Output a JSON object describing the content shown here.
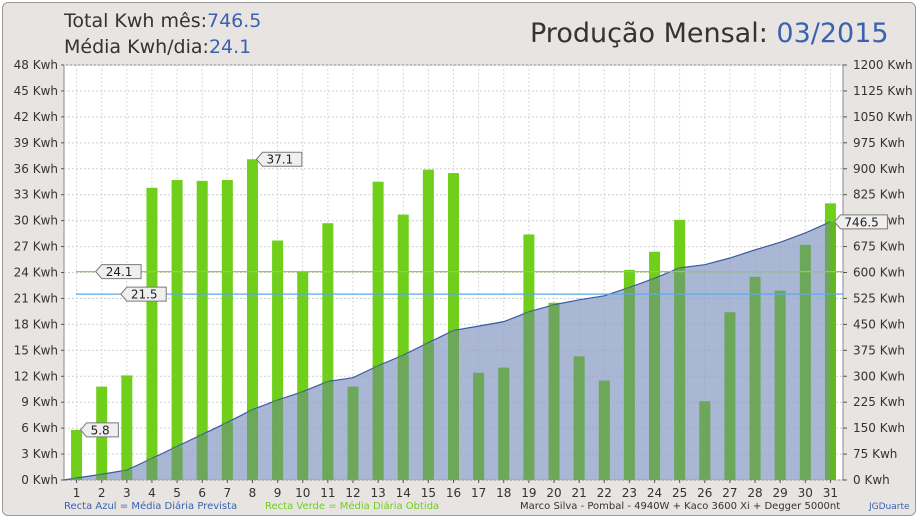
{
  "header": {
    "total_label": "Total Kwh mês:",
    "total_value": "746.5",
    "media_label": "Média Kwh/dia:",
    "media_value": "24.1",
    "title_label": "Produção Mensal: ",
    "title_value": "03/2015"
  },
  "footer": {
    "blue_line_note": "Recta Azul = Média Diária Prevista",
    "green_line_note": "Recta Verde = Média Diária Obtida",
    "system_info": "Marco Silva - Pombal - 4940W + Kaco 3600 Xi + Degger 5000nt",
    "author": "JGDuarte"
  },
  "chart_data": {
    "type": "bar",
    "categories": [
      "1",
      "2",
      "3",
      "4",
      "5",
      "6",
      "7",
      "8",
      "9",
      "10",
      "11",
      "12",
      "13",
      "14",
      "15",
      "16",
      "17",
      "18",
      "19",
      "20",
      "21",
      "22",
      "23",
      "24",
      "25",
      "26",
      "27",
      "28",
      "29",
      "30",
      "31"
    ],
    "series": [
      {
        "values": [
          5.8,
          10.8,
          12.1,
          33.8,
          34.7,
          34.6,
          34.7,
          37.1,
          27.7,
          24.1,
          29.7,
          10.8,
          34.5,
          30.7,
          35.9,
          35.5,
          12.4,
          13.0,
          28.4,
          20.5,
          14.3,
          11.5,
          24.3,
          26.4,
          30.1,
          9.1,
          19.4,
          23.5,
          21.9,
          27.2,
          32.0
        ],
        "color": "#6fcf1a"
      },
      {
        "values": [
          5.8,
          16.6,
          28.7,
          62.5,
          97.2,
          131.8,
          166.5,
          203.6,
          231.3,
          255.4,
          285.1,
          295.9,
          330.4,
          361.1,
          397.0,
          432.5,
          444.9,
          457.9,
          486.3,
          506.8,
          521.1,
          532.6,
          556.9,
          583.3,
          613.4,
          622.5,
          641.9,
          665.4,
          687.3,
          714.5,
          746.5
        ],
        "type": "area",
        "axis": "right",
        "color": "#8d9fc6"
      }
    ],
    "reference_lines": [
      {
        "value": 24.1,
        "label": "24.1",
        "color": "#8ad24a"
      },
      {
        "value": 21.5,
        "label": "21.5",
        "color": "#5aa8e6"
      }
    ],
    "callouts": [
      {
        "index": 0,
        "label": "5.8",
        "axis": "left"
      },
      {
        "index": 7,
        "label": "37.1",
        "axis": "left"
      },
      {
        "index": 30,
        "label": "746.5",
        "axis": "right",
        "value": 746.5
      }
    ],
    "y_left": {
      "min": 0,
      "max": 48,
      "step": 3,
      "unit": "Kwh"
    },
    "y_right": {
      "min": 0,
      "max": 1200,
      "step": 75,
      "unit": "Kwh"
    },
    "grid": true,
    "colors": {
      "bar_light": "#6fcf1a",
      "bar_dark": "#5aa426",
      "area_fill": "#8d9fc6",
      "area_line": "#3b5aa3",
      "plot_bg": "#ffffff"
    }
  }
}
